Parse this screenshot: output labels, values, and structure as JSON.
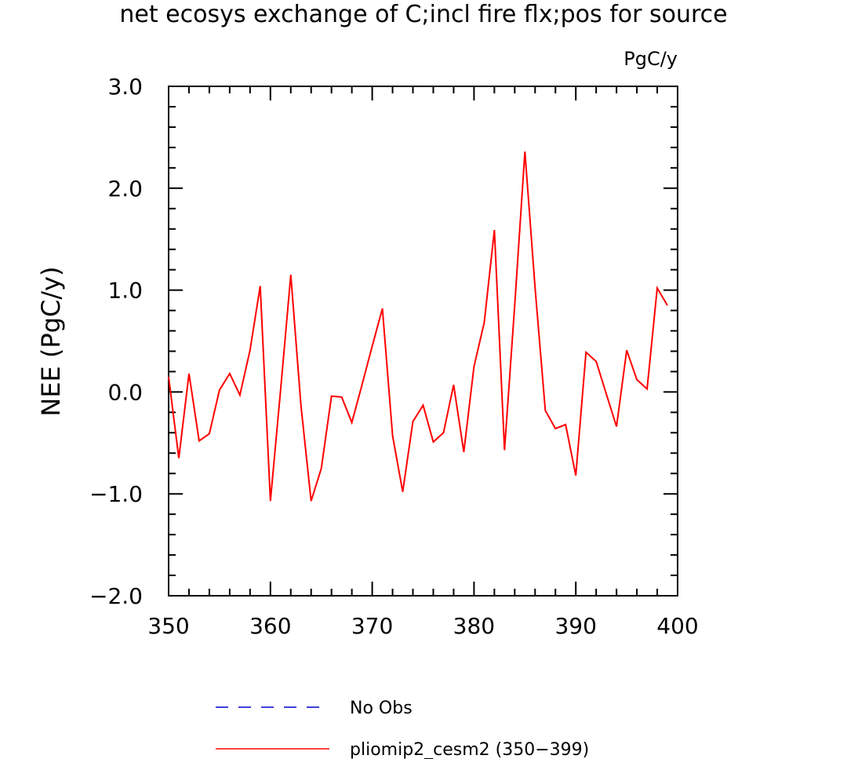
{
  "chart_data": {
    "type": "line",
    "title": "net ecosys exchange of C;incl fire flx;pos for source",
    "units_label": "PgC/y",
    "ylabel": "NEE  (PgC/y)",
    "xlabel": "",
    "xlim": [
      350,
      400
    ],
    "ylim": [
      -2.0,
      3.0
    ],
    "x_ticks": [
      350,
      360,
      370,
      380,
      390,
      400
    ],
    "x_tick_labels": [
      "350",
      "360",
      "370",
      "380",
      "390",
      "400"
    ],
    "y_ticks": [
      3.0,
      2.0,
      1.0,
      0.0,
      -1.0,
      -2.0
    ],
    "y_tick_labels": [
      "3.0",
      "2.0",
      "1.0",
      "0.0",
      "−1.0",
      "−2.0"
    ],
    "grid": false,
    "legend_position": "bottom",
    "series": [
      {
        "name": "No Obs",
        "color": "#0000cc",
        "style": "dashed",
        "x": [],
        "values": []
      },
      {
        "name": "pliomip2_cesm2 (350−399)",
        "color": "#ff0000",
        "style": "solid",
        "x": [
          350,
          351,
          352,
          353,
          354,
          355,
          356,
          357,
          358,
          359,
          360,
          361,
          362,
          363,
          364,
          365,
          366,
          367,
          368,
          369,
          370,
          371,
          372,
          373,
          374,
          375,
          376,
          377,
          378,
          379,
          380,
          381,
          382,
          383,
          384,
          385,
          386,
          387,
          388,
          389,
          390,
          391,
          392,
          393,
          394,
          395,
          396,
          397,
          398,
          399
        ],
        "values": [
          0.15,
          -0.65,
          0.18,
          -0.48,
          -0.41,
          0.02,
          0.18,
          -0.03,
          0.41,
          1.04,
          -1.07,
          0.02,
          1.15,
          -0.13,
          -1.07,
          -0.75,
          -0.04,
          -0.05,
          -0.3,
          0.07,
          0.45,
          0.82,
          -0.43,
          -0.98,
          -0.29,
          -0.13,
          -0.49,
          -0.4,
          0.07,
          -0.59,
          0.25,
          0.68,
          1.59,
          -0.57,
          0.85,
          2.36,
          1.02,
          -0.18,
          -0.36,
          -0.32,
          -0.82,
          0.39,
          0.3,
          -0.02,
          -0.34,
          0.41,
          0.12,
          0.03,
          1.02,
          0.85
        ]
      }
    ]
  }
}
